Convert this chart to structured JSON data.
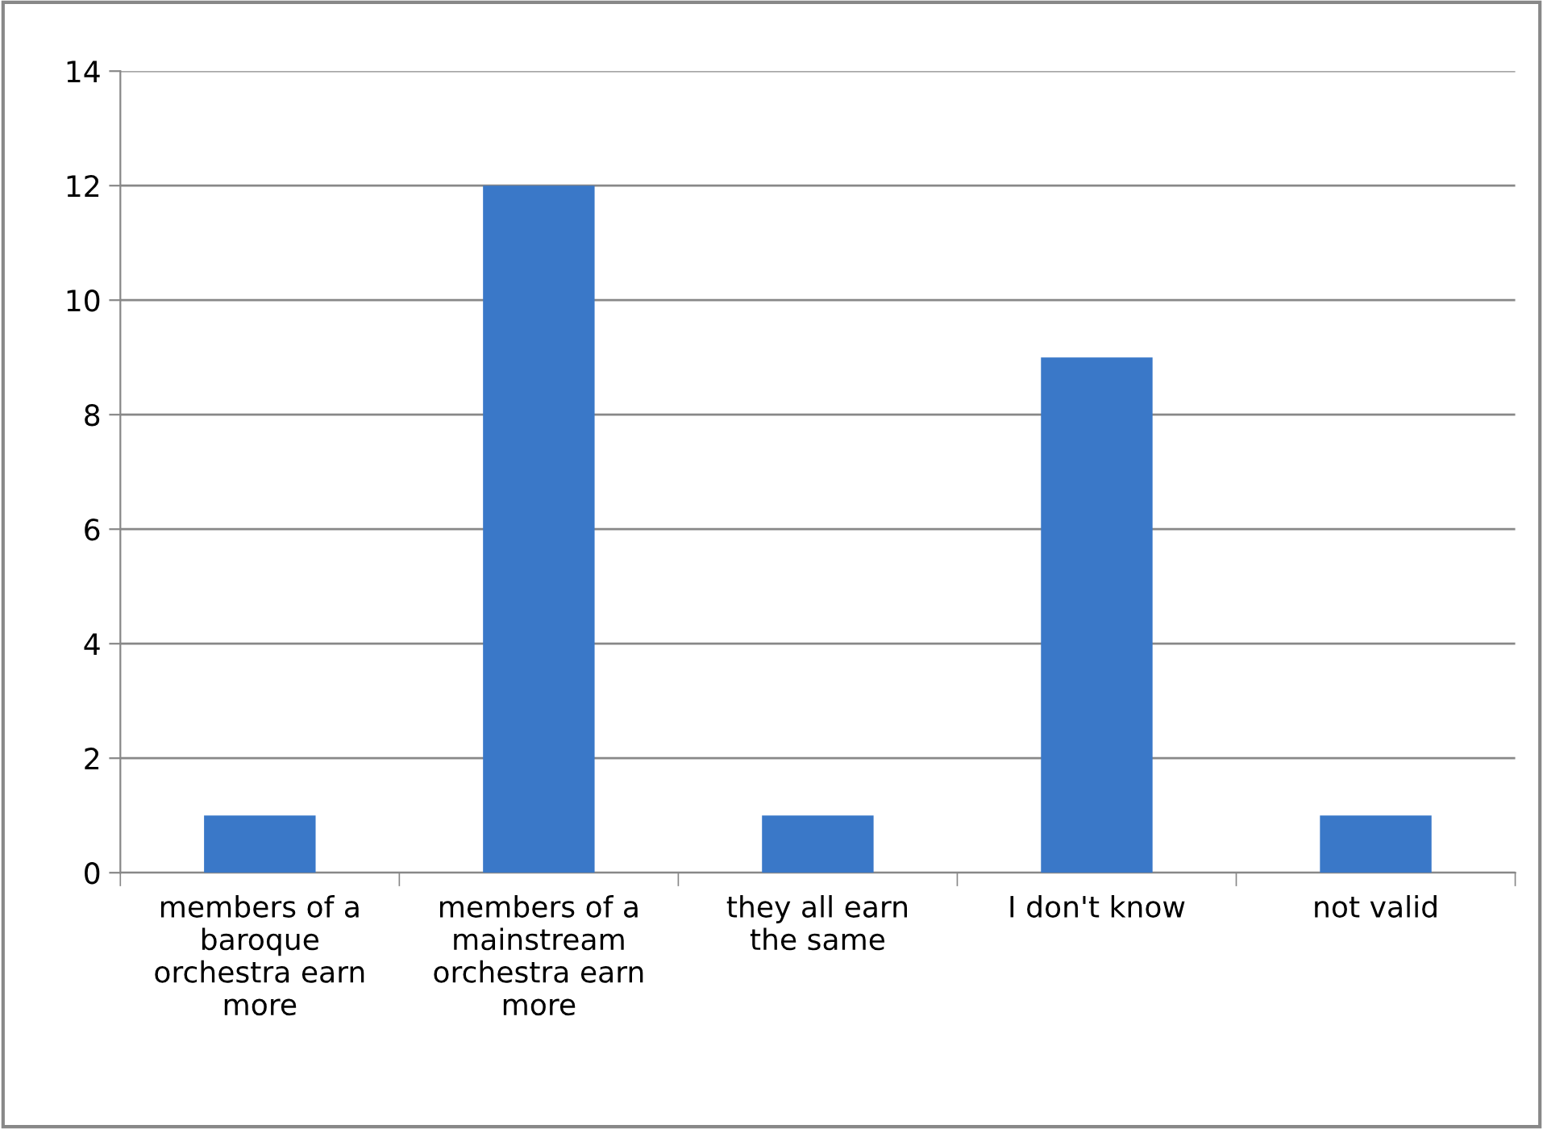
{
  "chart_data": {
    "type": "bar",
    "categories": [
      "members of a\nbaroque\norchestra earn\nmore",
      "members of a\nmainstream\norchestra earn\nmore",
      "they all earn\nthe same",
      "I don't know",
      "not valid"
    ],
    "values": [
      1,
      12,
      1,
      9,
      1
    ],
    "color": "#3a78c8",
    "ylim": [
      0,
      14
    ],
    "yticks": [
      0,
      2,
      4,
      6,
      8,
      10,
      12,
      14
    ],
    "grid": "y",
    "legend": false
  }
}
